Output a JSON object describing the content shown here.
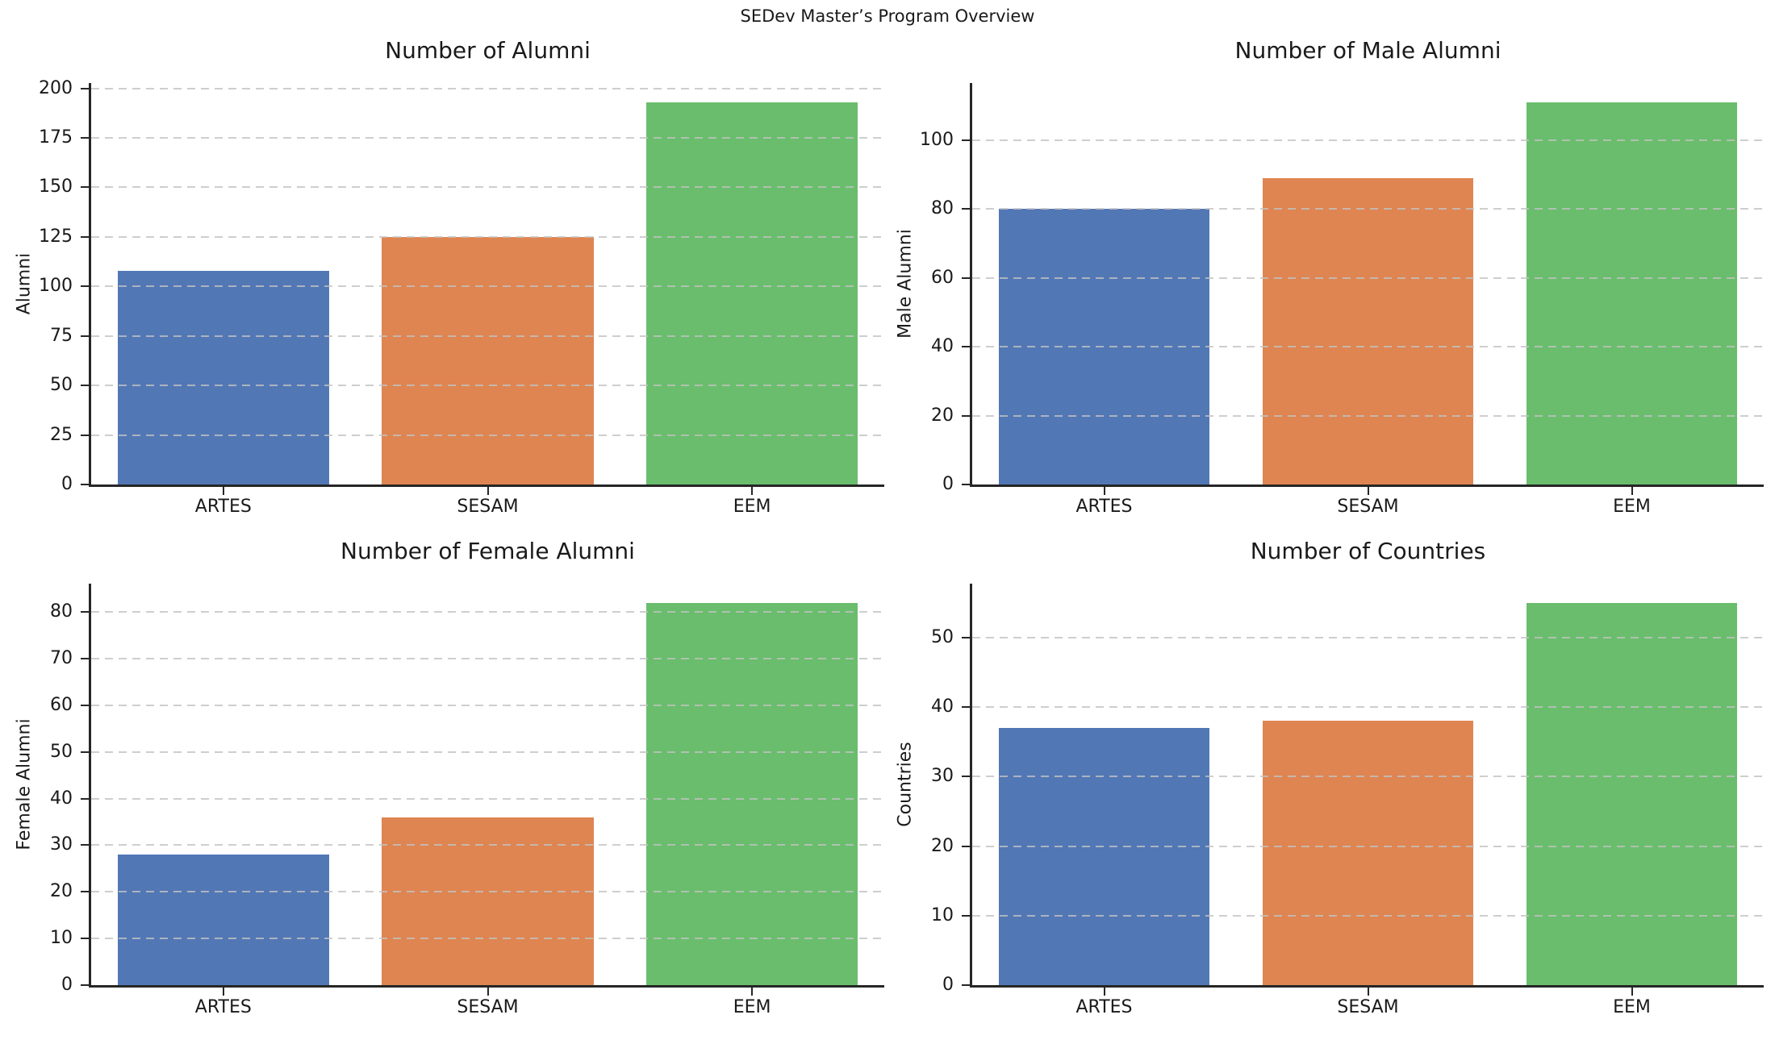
{
  "suptitle": "SEDev Master’s Program Overview",
  "palette": {
    "blue": "#5277B5",
    "orange": "#DE8552",
    "green": "#6ABD6C",
    "gridline": "#c2c2c2",
    "spine": "#262626"
  },
  "chart_data": [
    {
      "type": "bar",
      "title": "Number of Alumni",
      "xlabel": "",
      "ylabel": "Alumni",
      "categories": [
        "ARTES",
        "SESAM",
        "EEM"
      ],
      "values": [
        108,
        125,
        193
      ],
      "yticks": [
        0,
        25,
        50,
        75,
        100,
        125,
        150,
        175,
        200
      ],
      "ylim": [
        0,
        202.65
      ],
      "grid": "horizontal-dashed",
      "legend": "none",
      "bar_colors": [
        "#5277B5",
        "#DE8552",
        "#6ABD6C"
      ]
    },
    {
      "type": "bar",
      "title": "Number of Male Alumni",
      "xlabel": "",
      "ylabel": "Male Alumni",
      "categories": [
        "ARTES",
        "SESAM",
        "EEM"
      ],
      "values": [
        80,
        89,
        111
      ],
      "yticks": [
        0,
        20,
        40,
        60,
        80,
        100
      ],
      "ylim": [
        0,
        116.55
      ],
      "grid": "horizontal-dashed",
      "legend": "none",
      "bar_colors": [
        "#5277B5",
        "#DE8552",
        "#6ABD6C"
      ]
    },
    {
      "type": "bar",
      "title": "Number of Female Alumni",
      "xlabel": "",
      "ylabel": "Female Alumni",
      "categories": [
        "ARTES",
        "SESAM",
        "EEM"
      ],
      "values": [
        28,
        36,
        82
      ],
      "yticks": [
        0,
        10,
        20,
        30,
        40,
        50,
        60,
        70,
        80
      ],
      "ylim": [
        0,
        86.1
      ],
      "grid": "horizontal-dashed",
      "legend": "none",
      "bar_colors": [
        "#5277B5",
        "#DE8552",
        "#6ABD6C"
      ]
    },
    {
      "type": "bar",
      "title": "Number of Countries",
      "xlabel": "",
      "ylabel": "Countries",
      "categories": [
        "ARTES",
        "SESAM",
        "EEM"
      ],
      "values": [
        37,
        38,
        55
      ],
      "yticks": [
        0,
        10,
        20,
        30,
        40,
        50
      ],
      "ylim": [
        0,
        57.75
      ],
      "grid": "horizontal-dashed",
      "legend": "none",
      "bar_colors": [
        "#5277B5",
        "#DE8552",
        "#6ABD6C"
      ]
    }
  ]
}
